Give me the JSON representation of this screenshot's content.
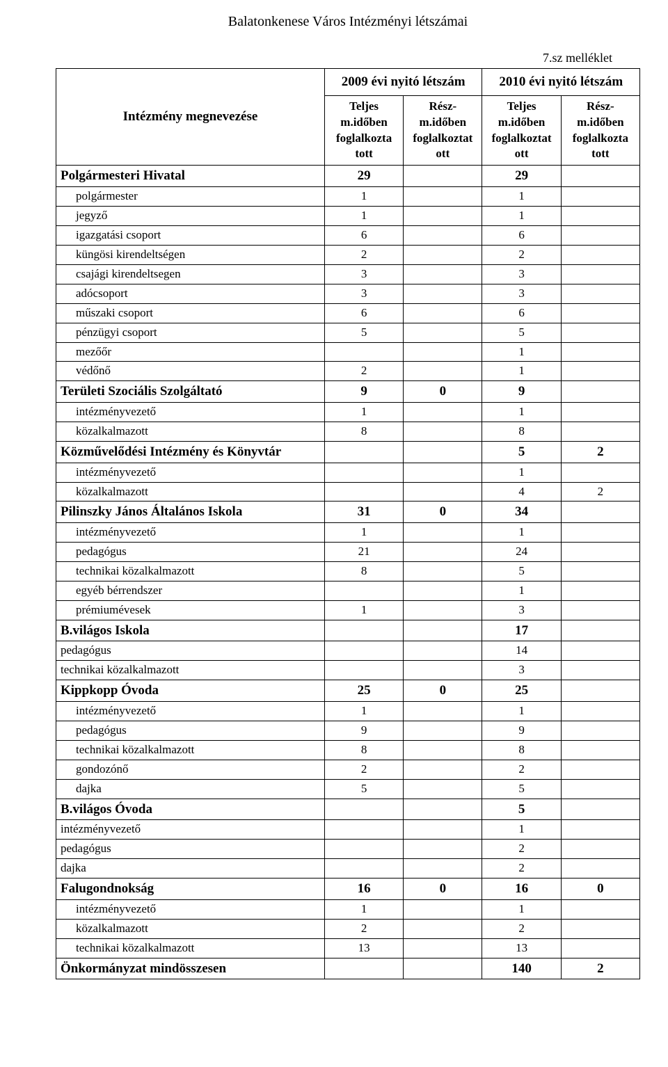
{
  "doc_title": "Balatonkenese Város Intézményi  létszámai",
  "appendix": "7.sz melléklet",
  "header": {
    "intezmeny": "Intézmény megnevezése",
    "group_2009": "2009 évi nyitó létszám",
    "group_2010": "2010 évi nyitó létszám",
    "col1": "Teljes m.időben foglalkozta tott",
    "col2": "Rész- m.időben foglalkoztat ott",
    "col3": "Teljes m.időben foglalkoztat ott",
    "col4": "Rész- m.időben foglalkozta tott"
  },
  "rows": [
    {
      "type": "bold",
      "name": "Polgármesteri Hivatal",
      "v1": "29",
      "v2": "",
      "v3": "29",
      "v4": ""
    },
    {
      "type": "sub",
      "name": "polgármester",
      "v1": "1",
      "v2": "",
      "v3": "1",
      "v4": ""
    },
    {
      "type": "sub",
      "name": "jegyző",
      "v1": "1",
      "v2": "",
      "v3": "1",
      "v4": ""
    },
    {
      "type": "sub",
      "name": "igazgatási csoport",
      "v1": "6",
      "v2": "",
      "v3": "6",
      "v4": ""
    },
    {
      "type": "sub",
      "name": "küngösi kirendeltségen",
      "v1": "2",
      "v2": "",
      "v3": "2",
      "v4": ""
    },
    {
      "type": "sub",
      "name": "csajági kirendeltsegen",
      "v1": "3",
      "v2": "",
      "v3": "3",
      "v4": ""
    },
    {
      "type": "sub",
      "name": "adócsoport",
      "v1": "3",
      "v2": "",
      "v3": "3",
      "v4": ""
    },
    {
      "type": "sub",
      "name": "műszaki csoport",
      "v1": "6",
      "v2": "",
      "v3": "6",
      "v4": ""
    },
    {
      "type": "sub",
      "name": "pénzügyi csoport",
      "v1": "5",
      "v2": "",
      "v3": "5",
      "v4": ""
    },
    {
      "type": "sub",
      "name": "mezőőr",
      "v1": "",
      "v2": "",
      "v3": "1",
      "v4": ""
    },
    {
      "type": "sub",
      "name": "védőnő",
      "v1": "2",
      "v2": "",
      "v3": "1",
      "v4": ""
    },
    {
      "type": "bold",
      "name": "Területi Szociális Szolgáltató",
      "v1": "9",
      "v2": "0",
      "v3": "9",
      "v4": ""
    },
    {
      "type": "sub",
      "name": "intézményvezető",
      "v1": "1",
      "v2": "",
      "v3": "1",
      "v4": ""
    },
    {
      "type": "sub",
      "name": "közalkalmazott",
      "v1": "8",
      "v2": "",
      "v3": "8",
      "v4": ""
    },
    {
      "type": "bold",
      "name": "Közművelődési Intézmény és Könyvtár",
      "v1": "",
      "v2": "",
      "v3": "5",
      "v4": "2"
    },
    {
      "type": "sub",
      "name": "intézményvezető",
      "v1": "",
      "v2": "",
      "v3": "1",
      "v4": ""
    },
    {
      "type": "sub",
      "name": "közalkalmazott",
      "v1": "",
      "v2": "",
      "v3": "4",
      "v4": "2"
    },
    {
      "type": "bold",
      "name": "Pilinszky János Általános Iskola",
      "v1": "31",
      "v2": "0",
      "v3": "34",
      "v4": ""
    },
    {
      "type": "sub",
      "name": "intézményvezető",
      "v1": "1",
      "v2": "",
      "v3": "1",
      "v4": ""
    },
    {
      "type": "sub",
      "name": "pedagógus",
      "v1": "21",
      "v2": "",
      "v3": "24",
      "v4": ""
    },
    {
      "type": "sub",
      "name": "technikai közalkalmazott",
      "v1": "8",
      "v2": "",
      "v3": "5",
      "v4": ""
    },
    {
      "type": "sub",
      "name": "egyéb bérrendszer",
      "v1": "",
      "v2": "",
      "v3": "1",
      "v4": ""
    },
    {
      "type": "sub",
      "name": "prémiumévesek",
      "v1": "1",
      "v2": "",
      "v3": "3",
      "v4": ""
    },
    {
      "type": "bold",
      "name": "B.világos Iskola",
      "v1": "",
      "v2": "",
      "v3": "17",
      "v4": ""
    },
    {
      "type": "flat",
      "name": "pedagógus",
      "v1": "",
      "v2": "",
      "v3": "14",
      "v4": ""
    },
    {
      "type": "flat",
      "name": "technikai közalkalmazott",
      "v1": "",
      "v2": "",
      "v3": "3",
      "v4": ""
    },
    {
      "type": "bold",
      "name": "Kippkopp Óvoda",
      "v1": "25",
      "v2": "0",
      "v3": "25",
      "v4": ""
    },
    {
      "type": "sub",
      "name": "intézményvezető",
      "v1": "1",
      "v2": "",
      "v3": "1",
      "v4": ""
    },
    {
      "type": "sub",
      "name": "pedagógus",
      "v1": "9",
      "v2": "",
      "v3": "9",
      "v4": ""
    },
    {
      "type": "sub",
      "name": "technikai közalkalmazott",
      "v1": "8",
      "v2": "",
      "v3": "8",
      "v4": ""
    },
    {
      "type": "sub",
      "name": "gondozónő",
      "v1": "2",
      "v2": "",
      "v3": "2",
      "v4": ""
    },
    {
      "type": "sub",
      "name": "dajka",
      "v1": "5",
      "v2": "",
      "v3": "5",
      "v4": ""
    },
    {
      "type": "bold",
      "name": "B.világos Óvoda",
      "v1": "",
      "v2": "",
      "v3": "5",
      "v4": ""
    },
    {
      "type": "flat",
      "name": "intézményvezető",
      "v1": "",
      "v2": "",
      "v3": "1",
      "v4": ""
    },
    {
      "type": "flat",
      "name": "pedagógus",
      "v1": "",
      "v2": "",
      "v3": "2",
      "v4": ""
    },
    {
      "type": "flat",
      "name": "dajka",
      "v1": "",
      "v2": "",
      "v3": "2",
      "v4": ""
    },
    {
      "type": "bold",
      "name": "Falugondnokság",
      "v1": "16",
      "v2": "0",
      "v3": "16",
      "v4": "0"
    },
    {
      "type": "sub",
      "name": "intézményvezető",
      "v1": "1",
      "v2": "",
      "v3": "1",
      "v4": ""
    },
    {
      "type": "sub",
      "name": "közalkalmazott",
      "v1": "2",
      "v2": "",
      "v3": "2",
      "v4": ""
    },
    {
      "type": "sub",
      "name": "technikai közalkalmazott",
      "v1": "13",
      "v2": "",
      "v3": "13",
      "v4": ""
    },
    {
      "type": "bold",
      "name": "Önkormányzat mindösszesen",
      "v1": "",
      "v2": "",
      "v3": "140",
      "v4": "2"
    }
  ]
}
